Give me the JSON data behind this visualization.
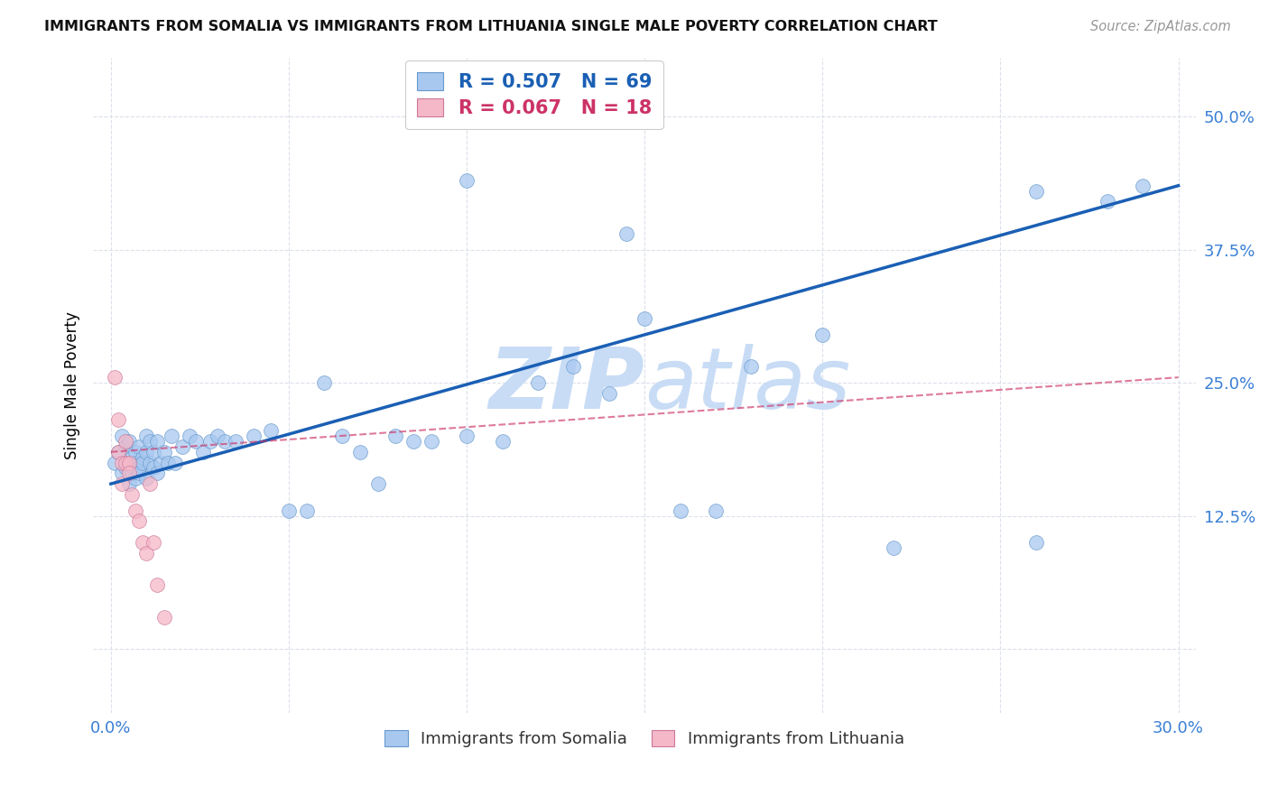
{
  "title": "IMMIGRANTS FROM SOMALIA VS IMMIGRANTS FROM LITHUANIA SINGLE MALE POVERTY CORRELATION CHART",
  "source": "Source: ZipAtlas.com",
  "ylabel_label": "Single Male Poverty",
  "somalia_color": "#a8c8f0",
  "somalia_edge": "#6699cc",
  "lithuania_color": "#f5b8c8",
  "lithuania_edge": "#cc7799",
  "somalia_R": 0.507,
  "somalia_N": 69,
  "lithuania_R": 0.067,
  "lithuania_N": 18,
  "regression_somalia_color": "#1a5fb4",
  "regression_lithuania_color": "#cc3366",
  "watermark_color": "#c8dcf5",
  "legend_somalia_label": "Immigrants from Somalia",
  "legend_lithuania_label": "Immigrants from Lithuania",
  "somalia_x": [
    0.001,
    0.002,
    0.003,
    0.003,
    0.004,
    0.004,
    0.005,
    0.005,
    0.005,
    0.006,
    0.006,
    0.007,
    0.007,
    0.007,
    0.008,
    0.008,
    0.008,
    0.009,
    0.009,
    0.01,
    0.01,
    0.01,
    0.011,
    0.011,
    0.012,
    0.012,
    0.013,
    0.013,
    0.014,
    0.015,
    0.016,
    0.017,
    0.018,
    0.02,
    0.022,
    0.024,
    0.026,
    0.028,
    0.03,
    0.032,
    0.035,
    0.04,
    0.045,
    0.05,
    0.055,
    0.06,
    0.065,
    0.07,
    0.075,
    0.08,
    0.085,
    0.09,
    0.1,
    0.11,
    0.12,
    0.13,
    0.14,
    0.15,
    0.16,
    0.17,
    0.18,
    0.2,
    0.22,
    0.26,
    0.28,
    0.145,
    0.1,
    0.29,
    0.26
  ],
  "somalia_y": [
    0.175,
    0.185,
    0.165,
    0.2,
    0.17,
    0.19,
    0.155,
    0.175,
    0.195,
    0.18,
    0.165,
    0.16,
    0.185,
    0.175,
    0.17,
    0.19,
    0.165,
    0.18,
    0.175,
    0.185,
    0.16,
    0.2,
    0.175,
    0.195,
    0.17,
    0.185,
    0.195,
    0.165,
    0.175,
    0.185,
    0.175,
    0.2,
    0.175,
    0.19,
    0.2,
    0.195,
    0.185,
    0.195,
    0.2,
    0.195,
    0.195,
    0.2,
    0.205,
    0.13,
    0.13,
    0.25,
    0.2,
    0.185,
    0.155,
    0.2,
    0.195,
    0.195,
    0.2,
    0.195,
    0.25,
    0.265,
    0.24,
    0.31,
    0.13,
    0.13,
    0.265,
    0.295,
    0.095,
    0.1,
    0.42,
    0.39,
    0.44,
    0.435,
    0.43
  ],
  "lithuania_x": [
    0.001,
    0.002,
    0.002,
    0.003,
    0.003,
    0.004,
    0.004,
    0.005,
    0.005,
    0.006,
    0.007,
    0.008,
    0.009,
    0.01,
    0.011,
    0.012,
    0.013,
    0.015
  ],
  "lithuania_y": [
    0.255,
    0.215,
    0.185,
    0.175,
    0.155,
    0.175,
    0.195,
    0.175,
    0.165,
    0.145,
    0.13,
    0.12,
    0.1,
    0.09,
    0.155,
    0.1,
    0.06,
    0.03
  ],
  "xlim": [
    -0.005,
    0.305
  ],
  "ylim": [
    -0.06,
    0.555
  ],
  "xticks": [
    0.0,
    0.05,
    0.1,
    0.15,
    0.2,
    0.25,
    0.3
  ],
  "yticks": [
    0.0,
    0.125,
    0.25,
    0.375,
    0.5
  ],
  "regression_som_x0": 0.0,
  "regression_som_y0": 0.155,
  "regression_som_x1": 0.3,
  "regression_som_y1": 0.435,
  "regression_lit_x0": 0.0,
  "regression_lit_y0": 0.185,
  "regression_lit_x1": 0.3,
  "regression_lit_y1": 0.255
}
